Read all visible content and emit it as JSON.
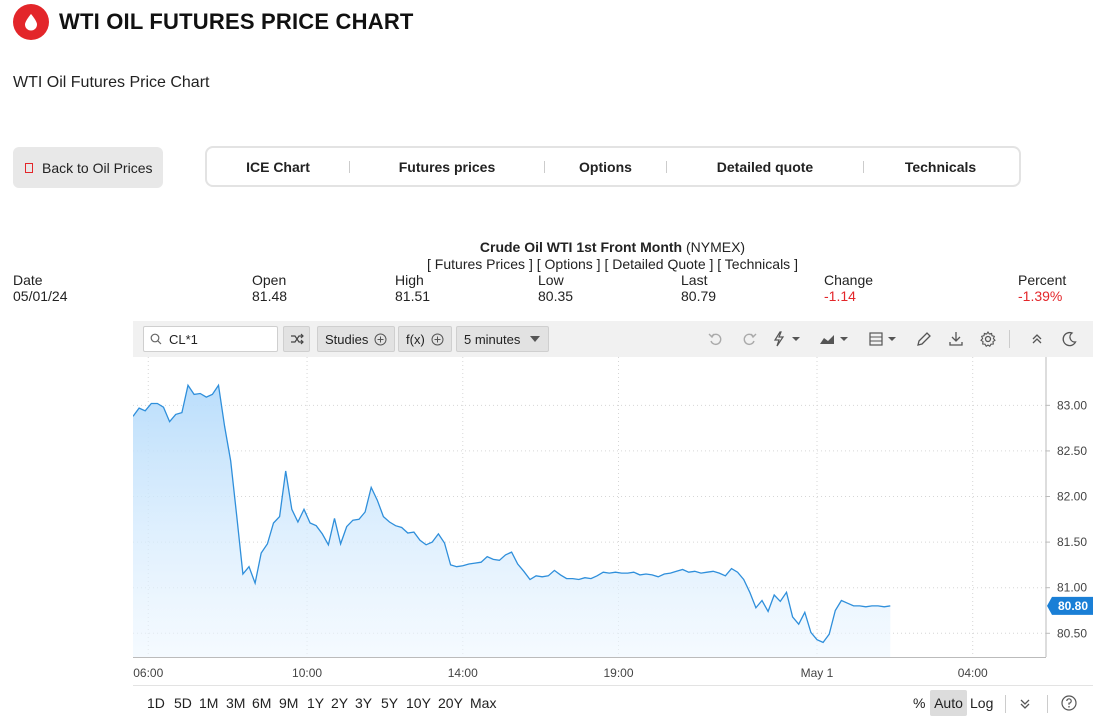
{
  "header": {
    "title": "WTI OIL FUTURES PRICE CHART",
    "logo_icon": "oil-drop-icon"
  },
  "subtitle": "WTI Oil Futures Price Chart",
  "back_button": {
    "label": "Back to Oil Prices"
  },
  "tabs": [
    {
      "label": "ICE Chart"
    },
    {
      "label": "Futures prices"
    },
    {
      "label": "Options"
    },
    {
      "label": "Detailed quote"
    },
    {
      "label": "Technicals"
    }
  ],
  "quote": {
    "name": "Crude Oil WTI 1st Front Month",
    "exchange": "(NYMEX)",
    "links": [
      "[ Futures Prices ]",
      "[ Options ]",
      "[ Detailed Quote ]",
      "[ Technicals ]"
    ],
    "columns": [
      {
        "label": "Date",
        "value": "05/01/24"
      },
      {
        "label": "Open",
        "value": "81.48"
      },
      {
        "label": "High",
        "value": "81.51"
      },
      {
        "label": "Low",
        "value": "80.35"
      },
      {
        "label": "Last",
        "value": "80.79"
      },
      {
        "label": "Change",
        "value": "-1.14"
      },
      {
        "label": "Percent",
        "value": "-1.39%"
      }
    ]
  },
  "toolbar": {
    "symbol": "CL*1",
    "studies_label": "Studies",
    "fx_label": "f(x)",
    "interval_label": "5 minutes",
    "icons": [
      "undo-icon",
      "redo-icon",
      "lightning-icon",
      "chart-type-icon",
      "layout-icon",
      "draw-pencil-icon",
      "download-icon",
      "settings-gear-icon",
      "collapse-up-icon",
      "dark-mode-moon-icon"
    ]
  },
  "footer": {
    "ranges": [
      "1D",
      "5D",
      "1M",
      "3M",
      "6M",
      "9M",
      "1Y",
      "2Y",
      "3Y",
      "5Y",
      "10Y",
      "20Y",
      "Max"
    ],
    "percent_label": "%",
    "auto_label": "Auto",
    "log_label": "Log"
  },
  "colors": {
    "accent": "#e3262a",
    "line": "#2f8fdb",
    "price_tag": "#1a7fd6"
  },
  "chart_data": {
    "type": "area",
    "symbol": "CL*1",
    "x_tick_labels": [
      "06:00",
      "10:00",
      "14:00",
      "19:00",
      "May 1",
      "04:00"
    ],
    "y_tick_labels": [
      "83.00",
      "82.50",
      "82.00",
      "81.50",
      "81.00",
      "80.50"
    ],
    "ylim": [
      80.24,
      83.53
    ],
    "last_price_label": "80.80",
    "grid": true,
    "x_unit": "bar index (5-minute bars)",
    "x": [
      0,
      2,
      4,
      6,
      8,
      10,
      12,
      14,
      16,
      18,
      20,
      22,
      24,
      26,
      28,
      30,
      32,
      34,
      36,
      38,
      40,
      42,
      44,
      46,
      48,
      50,
      52,
      54,
      56,
      58,
      60,
      62,
      64,
      66,
      68,
      70,
      72,
      74,
      76,
      78,
      80,
      82,
      84,
      86,
      88,
      90,
      92,
      94,
      96,
      98,
      100,
      102,
      104,
      106,
      108,
      110,
      112,
      114,
      116,
      118,
      120,
      122,
      124,
      126,
      128,
      130,
      132,
      134,
      136,
      138,
      140,
      142,
      144,
      146,
      148,
      150,
      152,
      154,
      156,
      158,
      160,
      162,
      164,
      166,
      168,
      170,
      172,
      174,
      176,
      178,
      180,
      182,
      184,
      186,
      188,
      190,
      192,
      194,
      196,
      198,
      200,
      202,
      204,
      206,
      208,
      210,
      212,
      214,
      216,
      218,
      220,
      222,
      224,
      226,
      228,
      230,
      232,
      234,
      236,
      238,
      240,
      242,
      244,
      246,
      248,
      250,
      252,
      254,
      256,
      258,
      260,
      262,
      264,
      266,
      268,
      270,
      272,
      274,
      276,
      278,
      280,
      282,
      284,
      286,
      288,
      290,
      292,
      294,
      296,
      298
    ],
    "values": [
      82.88,
      82.97,
      82.94,
      83.02,
      83.02,
      82.98,
      82.82,
      82.9,
      82.92,
      83.22,
      83.12,
      83.13,
      83.09,
      83.12,
      83.22,
      82.77,
      82.39,
      81.78,
      81.15,
      81.23,
      81.05,
      81.38,
      81.48,
      81.71,
      81.78,
      82.28,
      81.86,
      81.72,
      81.86,
      81.71,
      81.68,
      81.59,
      81.47,
      81.76,
      81.48,
      81.67,
      81.74,
      81.75,
      81.83,
      82.1,
      81.96,
      81.78,
      81.72,
      81.68,
      81.66,
      81.6,
      81.61,
      81.52,
      81.47,
      81.5,
      81.59,
      81.49,
      81.25,
      81.23,
      81.24,
      81.26,
      81.27,
      81.28,
      81.34,
      81.31,
      81.3,
      81.36,
      81.39,
      81.26,
      81.18,
      81.09,
      81.13,
      81.12,
      81.13,
      81.19,
      81.14,
      81.1,
      81.1,
      81.09,
      81.11,
      81.1,
      81.13,
      81.17,
      81.16,
      81.17,
      81.16,
      81.16,
      81.17,
      81.14,
      81.15,
      81.14,
      81.12,
      81.15,
      81.16,
      81.18,
      81.2,
      81.17,
      81.18,
      81.16,
      81.17,
      81.18,
      81.16,
      81.13,
      81.21,
      81.17,
      81.09,
      80.95,
      80.78,
      80.86,
      80.74,
      80.92,
      80.85,
      80.95,
      80.68,
      80.6,
      80.73,
      80.51,
      80.43,
      80.4,
      80.49,
      80.75,
      80.86,
      80.83,
      80.8,
      80.8,
      80.79,
      80.8,
      80.8,
      80.79,
      80.8,
      80.8,
      80.8,
      80.79,
      80.8,
      80.8,
      80.8,
      80.8,
      80.8,
      80.8,
      80.8,
      80.8,
      80.8,
      80.8,
      80.8,
      80.8,
      80.8,
      80.8,
      80.8,
      80.8,
      80.8,
      80.8,
      80.8,
      80.8,
      80.8,
      80.8
    ]
  }
}
